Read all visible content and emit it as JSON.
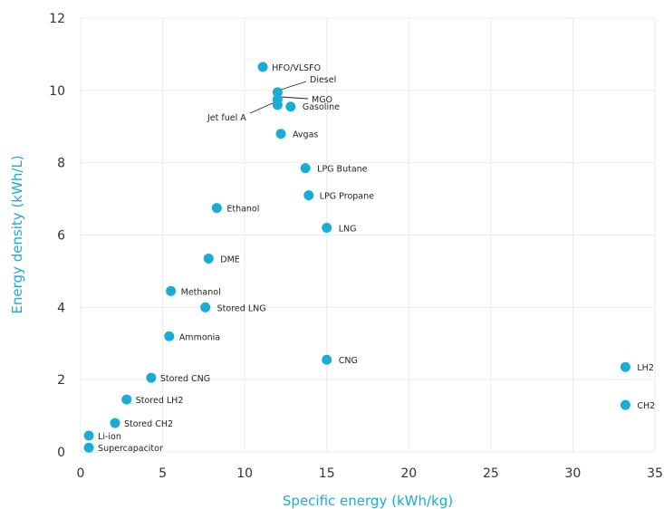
{
  "chart_data": {
    "type": "scatter",
    "title": "",
    "xlabel": "Specific energy (kWh/kg)",
    "ylabel": "Energy density (kWh/L)",
    "xlim": [
      0,
      35
    ],
    "ylim": [
      0,
      12
    ],
    "x_ticks": [
      0,
      5,
      10,
      15,
      20,
      25,
      30,
      35
    ],
    "y_ticks": [
      0,
      2,
      4,
      6,
      8,
      10,
      12
    ],
    "grid": true,
    "legend": "none",
    "colors": {
      "marker": "#1AACD6",
      "axis_title": "#1AACD6"
    },
    "points": [
      {
        "name": "HFO/VLSFO",
        "x": 11.1,
        "y": 10.65
      },
      {
        "name": "Diesel",
        "x": 12.0,
        "y": 9.95
      },
      {
        "name": "MGO",
        "x": 12.0,
        "y": 9.75
      },
      {
        "name": "Jet fuel A",
        "x": 12.0,
        "y": 9.6
      },
      {
        "name": "Gasoline",
        "x": 12.8,
        "y": 9.55
      },
      {
        "name": "Avgas",
        "x": 12.2,
        "y": 8.8
      },
      {
        "name": "LPG Butane",
        "x": 13.7,
        "y": 7.85
      },
      {
        "name": "LPG Propane",
        "x": 13.9,
        "y": 7.1
      },
      {
        "name": "Ethanol",
        "x": 8.3,
        "y": 6.75
      },
      {
        "name": "LNG",
        "x": 15.0,
        "y": 6.2
      },
      {
        "name": "DME",
        "x": 7.8,
        "y": 5.35
      },
      {
        "name": "Methanol",
        "x": 5.5,
        "y": 4.45
      },
      {
        "name": "Stored LNG",
        "x": 7.6,
        "y": 4.0
      },
      {
        "name": "Ammonia",
        "x": 5.4,
        "y": 3.2
      },
      {
        "name": "CNG",
        "x": 15.0,
        "y": 2.55
      },
      {
        "name": "Stored CNG",
        "x": 4.3,
        "y": 2.05
      },
      {
        "name": "Stored LH2",
        "x": 2.8,
        "y": 1.45
      },
      {
        "name": "Stored CH2",
        "x": 2.1,
        "y": 0.8
      },
      {
        "name": "Li-ion",
        "x": 0.5,
        "y": 0.45
      },
      {
        "name": "Supercapacitor",
        "x": 0.5,
        "y": 0.12
      },
      {
        "name": "LH2",
        "x": 33.2,
        "y": 2.35
      },
      {
        "name": "CH2",
        "x": 33.2,
        "y": 1.3
      }
    ]
  }
}
